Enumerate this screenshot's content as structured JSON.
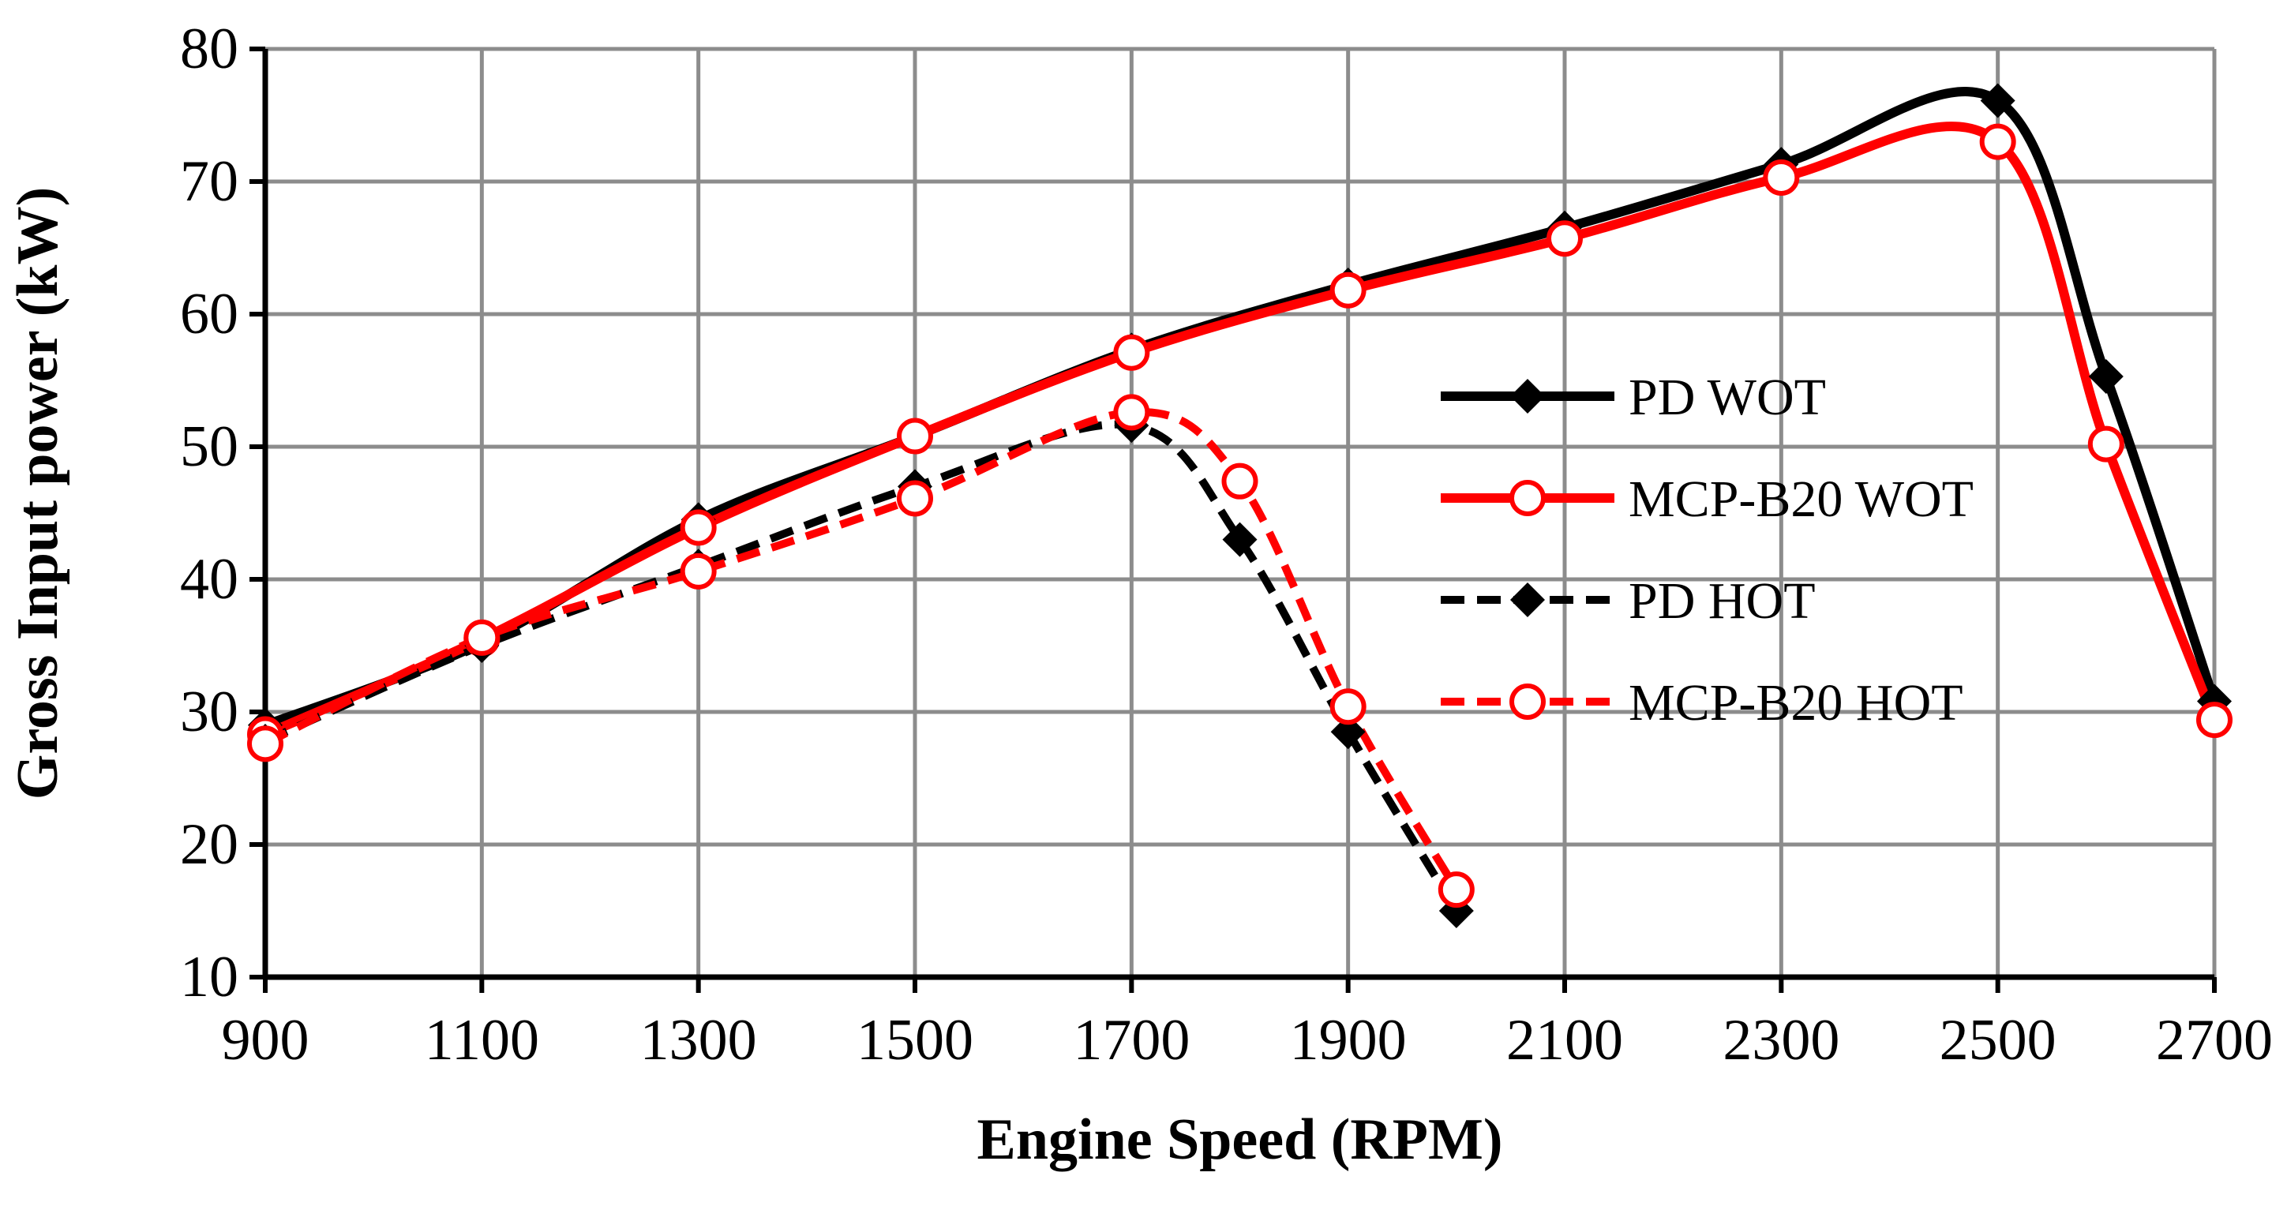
{
  "chart_data": {
    "type": "line",
    "title": "",
    "xlabel": "Engine Speed (RPM)",
    "ylabel": "Gross Input power (kW)",
    "xlim": [
      900,
      2700
    ],
    "ylim": [
      10,
      80
    ],
    "xticks": [
      900,
      1100,
      1300,
      1500,
      1700,
      1900,
      2100,
      2300,
      2500,
      2700
    ],
    "yticks": [
      10,
      20,
      30,
      40,
      50,
      60,
      70,
      80
    ],
    "xtick_labels": [
      "900",
      "1100",
      "1300",
      "1500",
      "1700",
      "1900",
      "2100",
      "2300",
      "2500",
      "2700"
    ],
    "ytick_labels": [
      "10",
      "20",
      "30",
      "40",
      "50",
      "60",
      "70",
      "80"
    ],
    "grid": true,
    "legend_position": "center-right",
    "series": [
      {
        "name": "PD WOT",
        "color": "#000000",
        "dash": "solid",
        "marker": "diamond",
        "x": [
          900,
          1100,
          1300,
          1500,
          1700,
          1900,
          2100,
          2300,
          2500,
          2600,
          2700
        ],
        "y": [
          29.0,
          35.2,
          44.5,
          50.8,
          57.3,
          62.2,
          66.5,
          71.3,
          76.1,
          55.3,
          30.8
        ]
      },
      {
        "name": "MCP-B20 WOT",
        "color": "#ff0000",
        "dash": "solid",
        "marker": "open-circle",
        "x": [
          900,
          1100,
          1300,
          1500,
          1700,
          1900,
          2100,
          2300,
          2500,
          2600,
          2700
        ],
        "y": [
          28.3,
          35.5,
          43.9,
          50.8,
          57.1,
          61.8,
          65.7,
          70.3,
          73.0,
          50.2,
          29.4
        ]
      },
      {
        "name": "PD HOT",
        "color": "#000000",
        "dash": "dashed",
        "marker": "diamond",
        "x": [
          900,
          1100,
          1300,
          1500,
          1700,
          1800,
          1900,
          2000
        ],
        "y": [
          27.8,
          35.0,
          41.0,
          47.0,
          51.6,
          43.0,
          28.5,
          15.0
        ]
      },
      {
        "name": "MCP-B20 HOT",
        "color": "#ff0000",
        "dash": "dashed",
        "marker": "open-circle",
        "x": [
          900,
          1100,
          1300,
          1500,
          1700,
          1800,
          1900,
          2000
        ],
        "y": [
          27.6,
          35.6,
          40.6,
          46.1,
          52.6,
          47.4,
          30.4,
          16.6
        ]
      }
    ]
  }
}
